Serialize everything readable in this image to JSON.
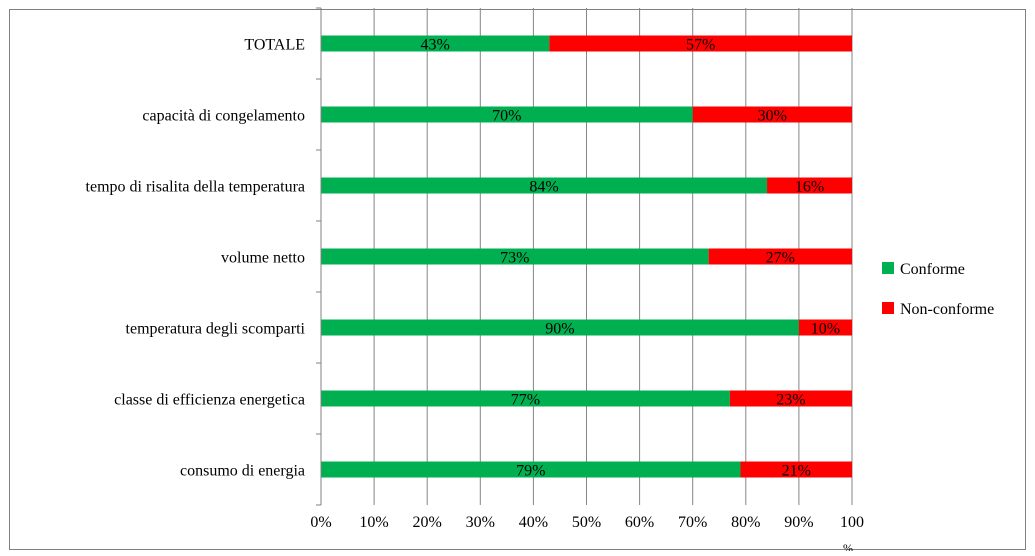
{
  "chart_data": {
    "type": "bar",
    "orientation": "horizontal",
    "stacked": true,
    "categories": [
      "TOTALE",
      "capacità di congelamento",
      "tempo di risalita della temperatura",
      "volume netto",
      "temperatura degli scomparti",
      "classe di efficienza energetica",
      "consumo di energia"
    ],
    "series": [
      {
        "name": "Conforme",
        "values": [
          43,
          70,
          84,
          73,
          90,
          77,
          79
        ],
        "color": "#00b050"
      },
      {
        "name": "Non-conforme",
        "values": [
          57,
          30,
          16,
          27,
          10,
          23,
          21
        ],
        "color": "#ff0000"
      }
    ],
    "data_labels": [
      [
        "43%",
        "70%",
        "84%",
        "73%",
        "90%",
        "77%",
        "79%"
      ],
      [
        "57%",
        "30%",
        "16%",
        "27%",
        "10%",
        "23%",
        "21%"
      ]
    ],
    "xlim": [
      0,
      100
    ],
    "xticks": [
      "0%",
      "10%",
      "20%",
      "30%",
      "40%",
      "50%",
      "60%",
      "70%",
      "80%",
      "90%",
      "100"
    ],
    "x_unit_fragment": "%",
    "grid": "vertical",
    "legend_position": "right",
    "axis_color": "#808080",
    "grid_color": "#868686",
    "border_color": "#808080"
  }
}
